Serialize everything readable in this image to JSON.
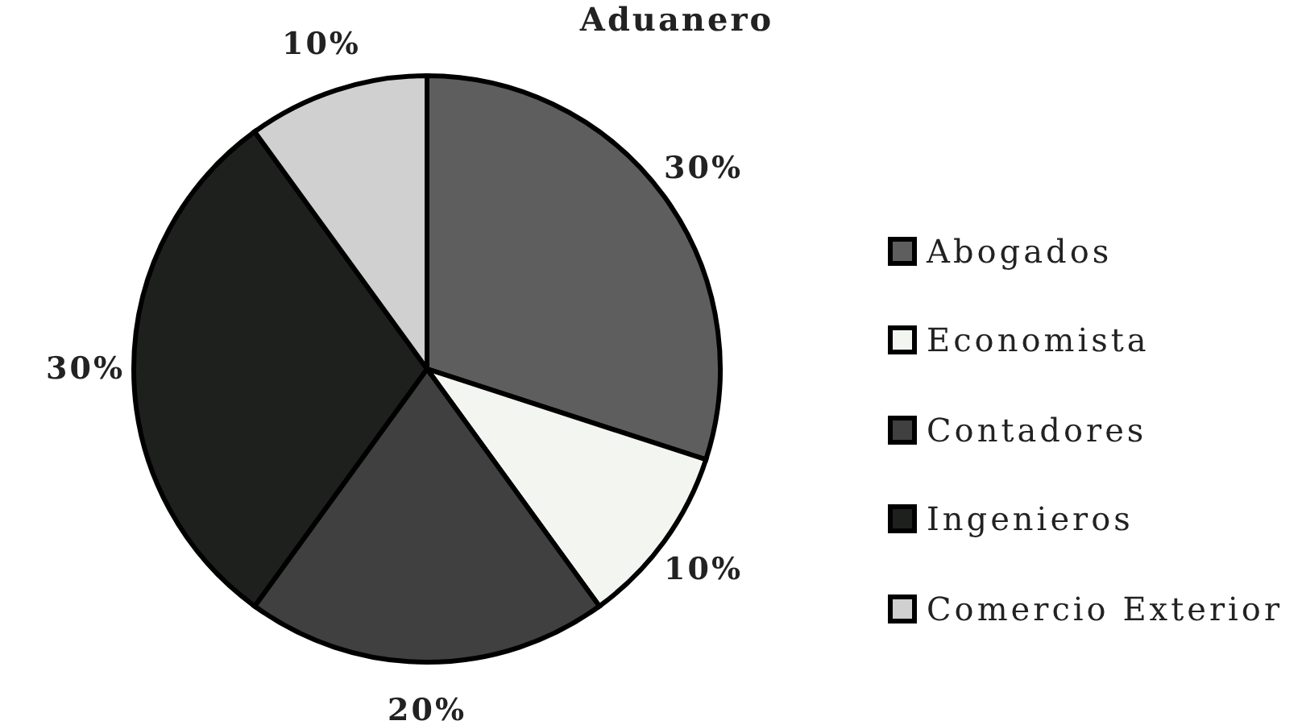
{
  "chart_data": {
    "type": "pie",
    "title": "Aduanero",
    "categories": [
      "Abogados",
      "Economista",
      "Contadores",
      "Ingenieros",
      "Comercio Exterior"
    ],
    "values": [
      30,
      10,
      20,
      30,
      10
    ],
    "colors": [
      "#5e5e5e",
      "#f2f5f0",
      "#404040",
      "#1e201e",
      "#d0d0d0"
    ],
    "value_labels": [
      "30%",
      "10%",
      "20%",
      "30%",
      "10%"
    ],
    "legend": "right"
  }
}
